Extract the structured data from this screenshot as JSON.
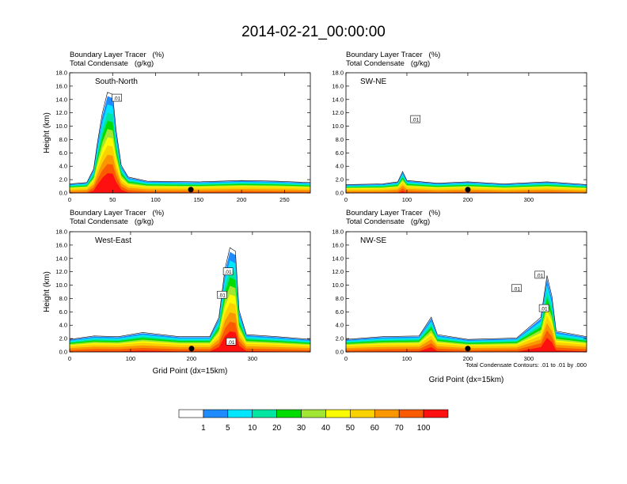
{
  "title": "2014-02-21_00:00:00",
  "colorbar": {
    "labels": [
      "1",
      "5",
      "10",
      "20",
      "30",
      "40",
      "50",
      "60",
      "70",
      "100"
    ],
    "colors": [
      "#ffffff",
      "#1e8cff",
      "#00e6ff",
      "#00e6a0",
      "#00dc00",
      "#a0e632",
      "#fafa00",
      "#fad200",
      "#fa9600",
      "#fa5a00",
      "#ff1010"
    ]
  },
  "contour_note": "Total Condensate Contours: .01 to .01 by .000",
  "chart_data": [
    {
      "type": "contour",
      "panel_title": "South-North",
      "field_1": "Boundary Layer Tracer   (%)",
      "field_2": "Total Condensate   (g/kg)",
      "ylabel": "Height (km)",
      "xlabel": "",
      "xlim": [
        0,
        280
      ],
      "xticks": [
        0,
        50,
        100,
        150,
        200,
        250
      ],
      "ylim": [
        0,
        18
      ],
      "yticks": [
        "0.0",
        "2.0",
        "4.0",
        "6.0",
        "8.0",
        "10.0",
        "12.0",
        "14.0",
        "16.0",
        "18.0"
      ],
      "marker_x": 141,
      "contour_labels": [
        {
          "text": ".01",
          "x": 55,
          "y": 14.2
        }
      ],
      "top_profile": [
        [
          0,
          1.3
        ],
        [
          20,
          1.5
        ],
        [
          28,
          3.5
        ],
        [
          32,
          7
        ],
        [
          38,
          11.5
        ],
        [
          44,
          14.5
        ],
        [
          50,
          14.2
        ],
        [
          54,
          9
        ],
        [
          60,
          4
        ],
        [
          68,
          2.3
        ],
        [
          90,
          1.7
        ],
        [
          150,
          1.6
        ],
        [
          200,
          1.8
        ],
        [
          240,
          1.7
        ],
        [
          280,
          1.5
        ]
      ]
    },
    {
      "type": "contour",
      "panel_title": "SW-NE",
      "field_1": "Boundary Layer Tracer   (%)",
      "field_2": "Total Condensate   (g/kg)",
      "ylabel": "",
      "xlabel": "",
      "xlim": [
        0,
        395
      ],
      "xticks": [
        0,
        100,
        200,
        300
      ],
      "ylim": [
        0,
        18
      ],
      "yticks": [
        "0.0",
        "2.0",
        "4.0",
        "6.0",
        "8.0",
        "10.0",
        "12.0",
        "14.0",
        "16.0",
        "18.0"
      ],
      "marker_x": 200,
      "contour_labels": [
        {
          "text": ".01",
          "x": 114,
          "y": 11.0
        }
      ],
      "top_profile": [
        [
          0,
          1.2
        ],
        [
          60,
          1.3
        ],
        [
          85,
          1.6
        ],
        [
          93,
          3.1
        ],
        [
          100,
          1.8
        ],
        [
          150,
          1.4
        ],
        [
          200,
          1.6
        ],
        [
          260,
          1.3
        ],
        [
          330,
          1.6
        ],
        [
          395,
          1.2
        ]
      ]
    },
    {
      "type": "contour",
      "panel_title": "West-East",
      "field_1": "Boundary Layer Tracer   (%)",
      "field_2": "Total Condensate   (g/kg)",
      "ylabel": "Height (km)",
      "xlabel": "Grid Point (dx=15km)",
      "xlim": [
        0,
        395
      ],
      "xticks": [
        0,
        100,
        200,
        300
      ],
      "ylim": [
        0,
        18
      ],
      "yticks": [
        "0.0",
        "2.0",
        "4.0",
        "6.0",
        "8.0",
        "10.0",
        "12.0",
        "14.0",
        "16.0",
        "18.0"
      ],
      "marker_x": 200,
      "contour_labels": [
        {
          "text": ".01",
          "x": 250,
          "y": 8.5
        },
        {
          "text": ".01",
          "x": 260,
          "y": 12.0
        },
        {
          "text": ".01",
          "x": 265,
          "y": 1.5
        }
      ],
      "top_profile": [
        [
          0,
          1.8
        ],
        [
          40,
          2.3
        ],
        [
          80,
          2.2
        ],
        [
          120,
          2.8
        ],
        [
          180,
          2.2
        ],
        [
          230,
          2.2
        ],
        [
          245,
          5
        ],
        [
          255,
          12
        ],
        [
          263,
          15
        ],
        [
          272,
          14.5
        ],
        [
          278,
          6
        ],
        [
          290,
          2.5
        ],
        [
          340,
          2.2
        ],
        [
          395,
          1.8
        ]
      ]
    },
    {
      "type": "contour",
      "panel_title": "NW-SE",
      "field_1": "Boundary Layer Tracer   (%)",
      "field_2": "Total Condensate   (g/kg)",
      "ylabel": "",
      "xlabel": "Grid Point (dx=15km)",
      "xlim": [
        0,
        395
      ],
      "xticks": [
        0,
        100,
        200,
        300
      ],
      "ylim": [
        0,
        18
      ],
      "yticks": [
        "0.0",
        "2.0",
        "4.0",
        "6.0",
        "8.0",
        "10.0",
        "12.0",
        "14.0",
        "16.0",
        "18.0"
      ],
      "marker_x": 200,
      "contour_labels": [
        {
          "text": ".01",
          "x": 280,
          "y": 9.5
        },
        {
          "text": ".01",
          "x": 318,
          "y": 11.5
        },
        {
          "text": ".01",
          "x": 325,
          "y": 6.5
        }
      ],
      "top_profile": [
        [
          0,
          1.8
        ],
        [
          60,
          2.2
        ],
        [
          120,
          2.3
        ],
        [
          140,
          5
        ],
        [
          150,
          2.5
        ],
        [
          200,
          1.8
        ],
        [
          280,
          2
        ],
        [
          320,
          5
        ],
        [
          330,
          11
        ],
        [
          338,
          8
        ],
        [
          345,
          3
        ],
        [
          395,
          2.2
        ]
      ]
    }
  ]
}
